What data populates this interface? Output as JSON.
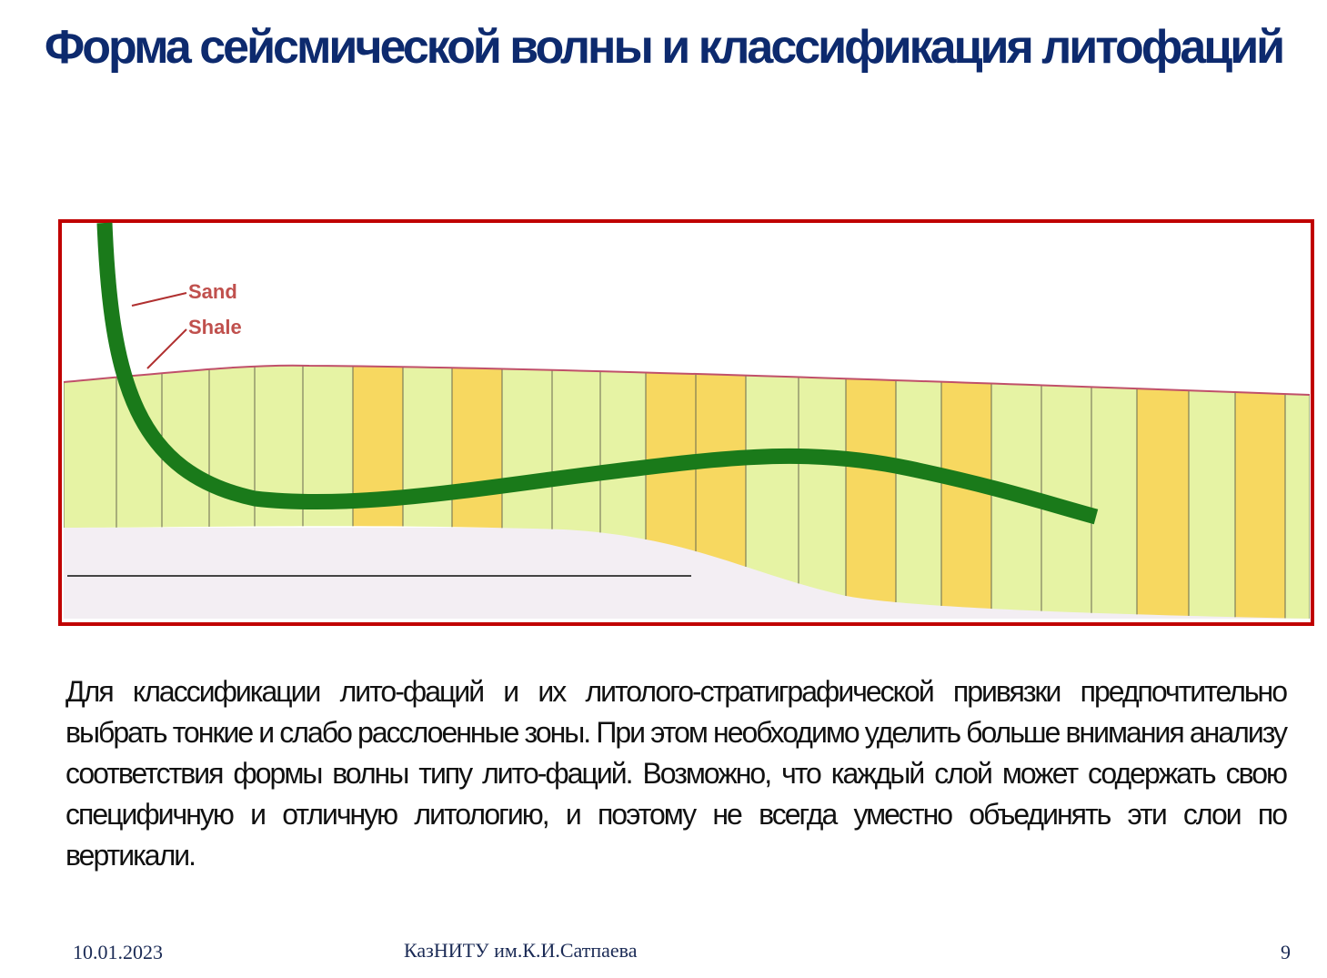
{
  "header": {
    "title": "Форма сейсмической волны и классификация литофаций"
  },
  "figure": {
    "labels": [
      "Sand",
      "Shale"
    ]
  },
  "body": {
    "paragraph": "Для классификации лито-фаций и их литолого-стратиграфической привязки предпочтительно выбрать тонкие и слабо расслоенные зоны. При этом необходимо уделить больше внимания анализу соответствия формы волны типу лито-фаций. Возможно, что каждый слой может содержать свою специфичную и отличную литологию, и поэтому не всегда уместно объединять эти слои по вертикали."
  },
  "footer": {
    "date": "10.01.2023",
    "organization": "КазНИТУ им.К.И.Сатпаева",
    "page": "9"
  }
}
